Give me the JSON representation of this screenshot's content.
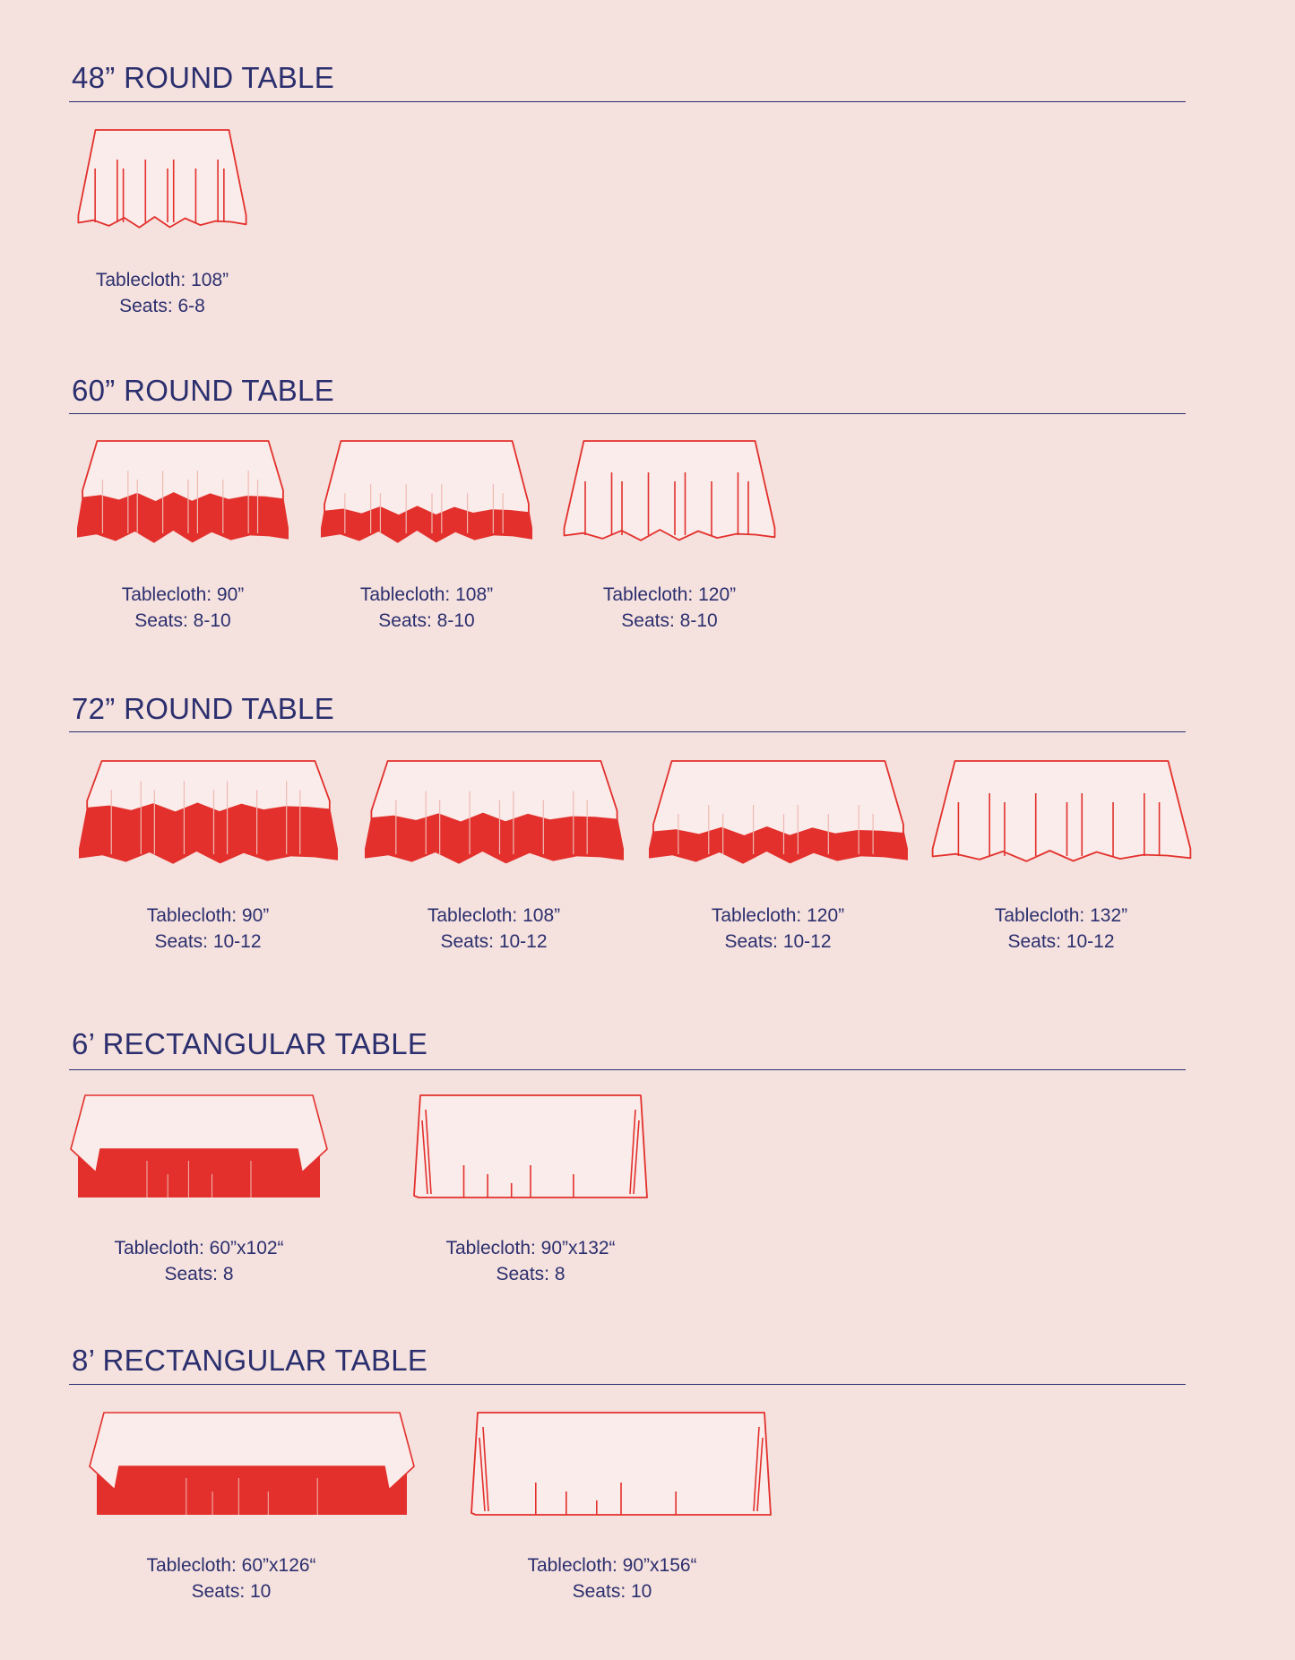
{
  "colors": {
    "background": "#f5e1de",
    "text": "#2b2f6e",
    "accent_red": "#e3302c",
    "cloth_white": "#f9ecea"
  },
  "sections": [
    {
      "title": "48” ROUND TABLE",
      "shape": "round",
      "items": [
        {
          "tablecloth": "Tablecloth: 108”",
          "seats": "Seats: 6-8",
          "drape": "floor-length"
        }
      ]
    },
    {
      "title": "60” ROUND TABLE",
      "shape": "round",
      "items": [
        {
          "tablecloth": "Tablecloth: 90”",
          "seats": "Seats: 8-10",
          "drape": "half"
        },
        {
          "tablecloth": "Tablecloth: 108”",
          "seats": "Seats: 8-10",
          "drape": "three-quarter"
        },
        {
          "tablecloth": "Tablecloth: 120”",
          "seats": "Seats: 8-10",
          "drape": "floor-length"
        }
      ]
    },
    {
      "title": "72” ROUND TABLE",
      "shape": "round",
      "items": [
        {
          "tablecloth": "Tablecloth: 90”",
          "seats": "Seats: 10-12",
          "drape": "short"
        },
        {
          "tablecloth": "Tablecloth: 108”",
          "seats": "Seats: 10-12",
          "drape": "half"
        },
        {
          "tablecloth": "Tablecloth: 120”",
          "seats": "Seats: 10-12",
          "drape": "three-quarter"
        },
        {
          "tablecloth": "Tablecloth: 132”",
          "seats": "Seats: 10-12",
          "drape": "floor-length"
        }
      ]
    },
    {
      "title": "6’ RECTANGULAR TABLE",
      "shape": "rect",
      "items": [
        {
          "tablecloth": "Tablecloth: 60”x102“",
          "seats": "Seats: 8",
          "drape": "short"
        },
        {
          "tablecloth": "Tablecloth: 90”x132“",
          "seats": "Seats: 8",
          "drape": "floor-length"
        }
      ]
    },
    {
      "title": "8’ RECTANGULAR TABLE",
      "shape": "rect",
      "items": [
        {
          "tablecloth": "Tablecloth: 60”x126“",
          "seats": "Seats: 10",
          "drape": "short"
        },
        {
          "tablecloth": "Tablecloth: 90”x156“",
          "seats": "Seats: 10",
          "drape": "floor-length"
        }
      ]
    }
  ]
}
